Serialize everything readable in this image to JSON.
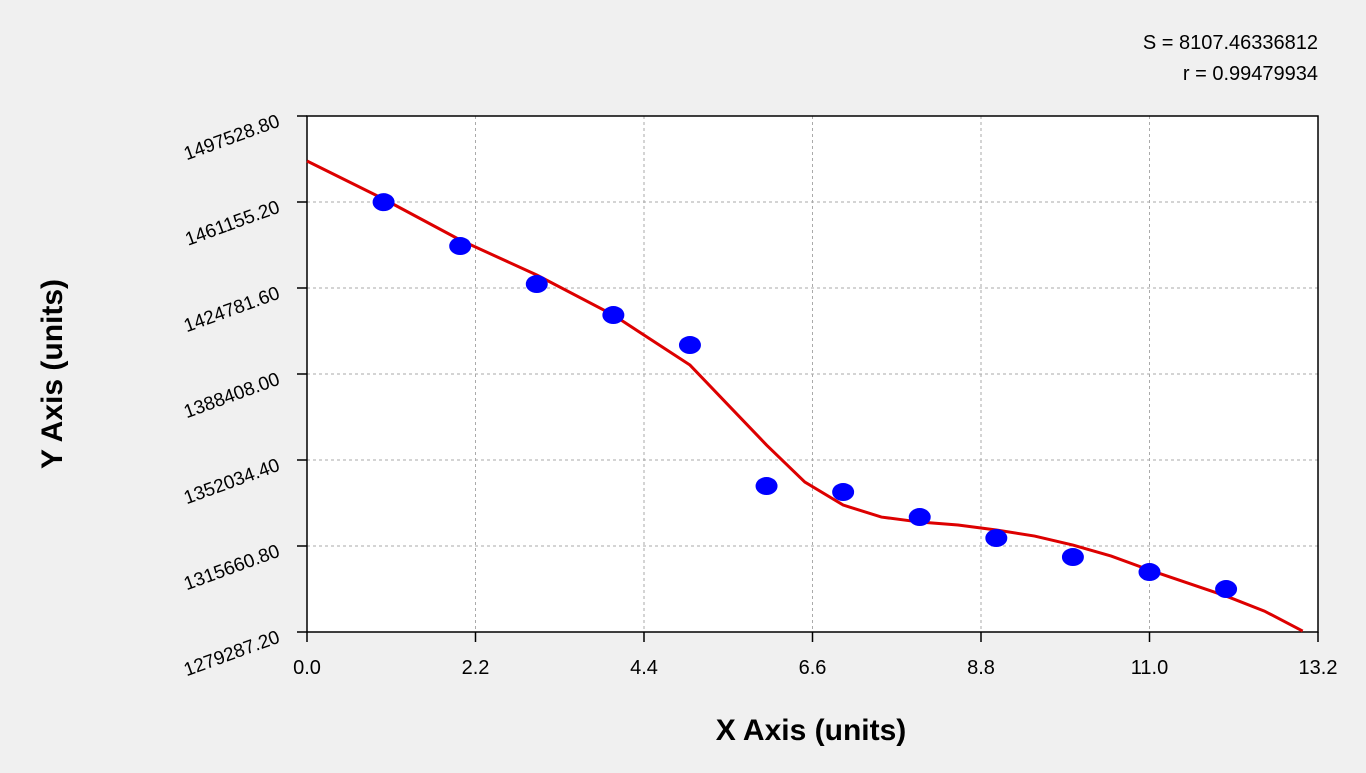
{
  "chart_data": {
    "type": "scatter",
    "annotations": [
      "S = 8107.46336812",
      "r = 0.99479934"
    ],
    "x_label": "X Axis (units)",
    "y_label": "Y Axis (units)",
    "xlim": [
      0,
      13.2
    ],
    "ylim": [
      1279287.2,
      1497528.8
    ],
    "xticks": [
      {
        "value": 0,
        "label": "0.0"
      },
      2.2,
      4.4,
      6.6,
      8.8,
      {
        "value": 11,
        "label": "11.0"
      },
      13.2
    ],
    "yticks": [
      {
        "value": 1279287.2,
        "label": "1279287.20"
      },
      {
        "value": 1315660.8,
        "label": "1315660.80"
      },
      {
        "value": 1352034.4,
        "label": "1352034.40"
      },
      {
        "value": 1388408,
        "label": "1388408.00"
      },
      {
        "value": 1424781.6,
        "label": "1424781.60"
      },
      {
        "value": 1461155.2,
        "label": "1461155.20"
      },
      {
        "value": 1497528.8,
        "label": "1497528.80"
      }
    ],
    "grid": true,
    "series": [
      {
        "style": "points",
        "color": "#0000ff",
        "x": [
          1,
          2,
          3,
          4,
          5,
          6,
          7,
          8,
          9,
          10,
          11,
          12
        ],
        "values": [
          1461100,
          1442540,
          1426470,
          1413350,
          1400660,
          1341020,
          1338480,
          1327900,
          1319020,
          1310990,
          1304640,
          1297450
        ]
      },
      {
        "style": "line",
        "color": "#dd0000",
        "x": [
          0,
          1,
          2,
          3,
          4,
          5,
          5.5,
          6,
          6.5,
          7,
          7.5,
          8,
          8.5,
          9,
          9.5,
          10,
          10.5,
          11,
          11.5,
          12,
          12.5,
          13
        ],
        "values": [
          1478490,
          1462420,
          1445080,
          1430270,
          1413350,
          1392200,
          1375280,
          1358360,
          1342710,
          1332980,
          1327900,
          1325790,
          1324520,
          1322410,
          1319870,
          1316060,
          1311410,
          1305490,
          1299990,
          1294490,
          1288140,
          1279700
        ]
      }
    ]
  }
}
